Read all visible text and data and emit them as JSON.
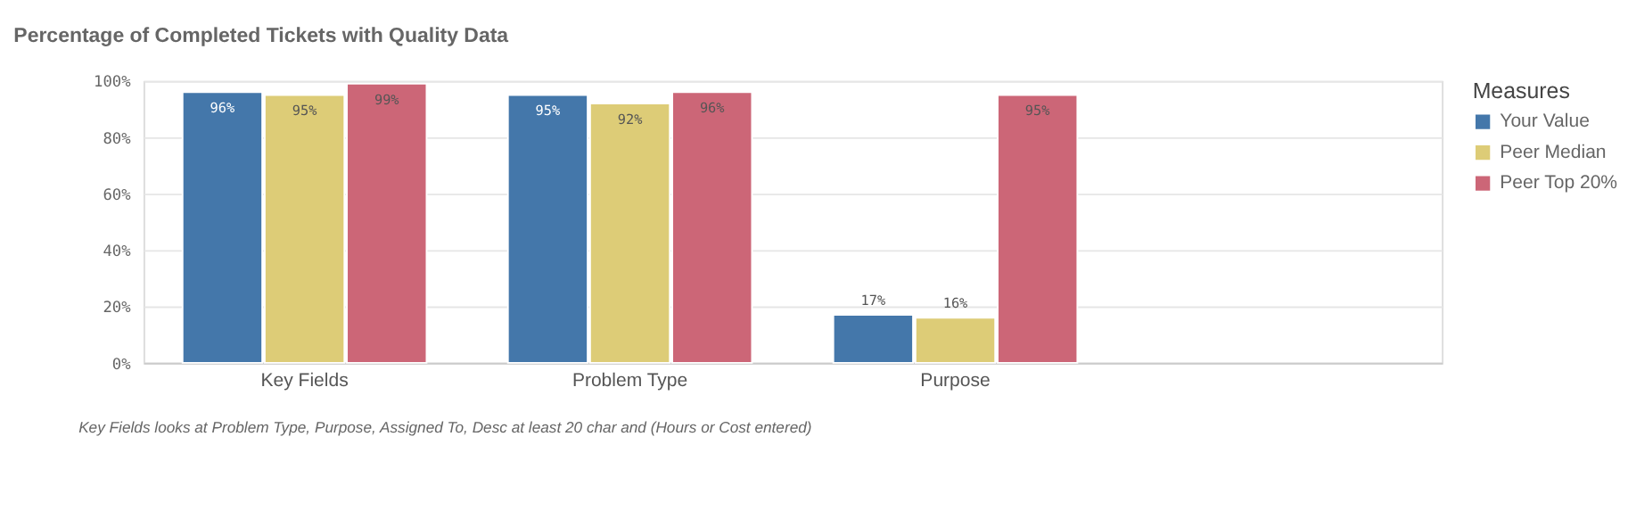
{
  "chart_data": {
    "type": "bar",
    "title": "Percentage of Completed Tickets with Quality Data",
    "categories": [
      "Key Fields",
      "Problem Type",
      "Purpose",
      null
    ],
    "series": [
      {
        "name": "Your Value",
        "color": "#4477aa",
        "values": [
          96,
          95,
          17,
          null
        ],
        "value_labels": [
          "96%",
          "95%",
          "17%",
          null
        ]
      },
      {
        "name": "Peer Median",
        "color": "#ddcc77",
        "values": [
          95,
          92,
          16,
          null
        ],
        "value_labels": [
          "95%",
          "92%",
          "16%",
          null
        ]
      },
      {
        "name": "Peer Top 20%",
        "color": "#cc6677",
        "values": [
          99,
          96,
          95,
          null
        ],
        "value_labels": [
          "99%",
          "96%",
          "95%",
          null
        ]
      }
    ],
    "ylim": [
      0,
      100
    ],
    "yticks": [
      {
        "value": 0,
        "label": "0%"
      },
      {
        "value": 20,
        "label": "20%"
      },
      {
        "value": 40,
        "label": "40%"
      },
      {
        "value": 60,
        "label": "60%"
      },
      {
        "value": 80,
        "label": "80%"
      },
      {
        "value": 100,
        "label": "100%"
      }
    ],
    "grid": "y",
    "legend": "top right",
    "legend_title": "Measures",
    "annotations": [
      "Key Fields looks at Problem Type, Purpose, Assigned To, Desc at least 20 char and (Hours or Cost entered)"
    ]
  }
}
